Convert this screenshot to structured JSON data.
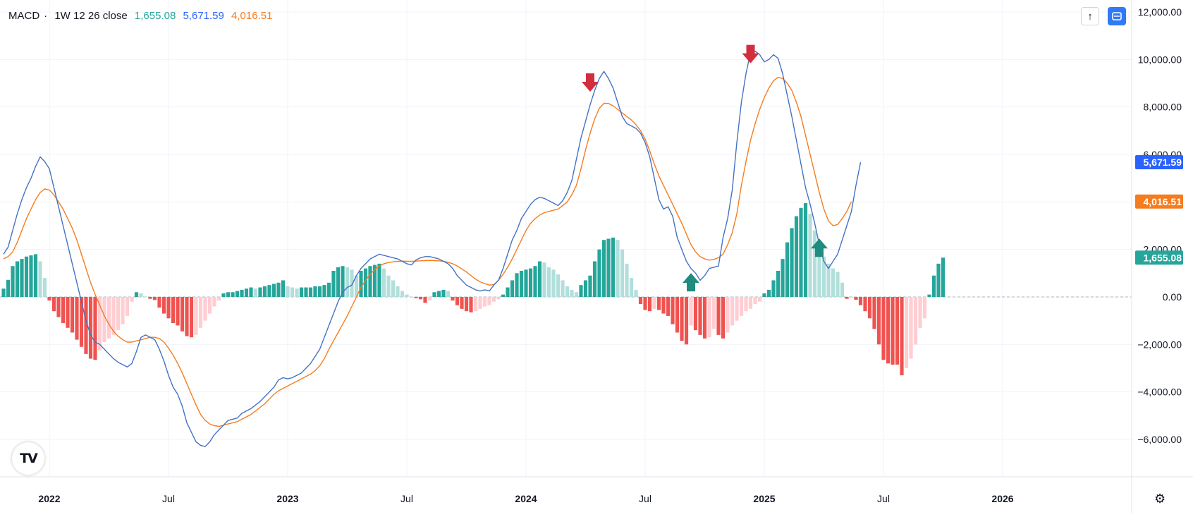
{
  "legend": {
    "name": "MACD",
    "separator": "·",
    "params": "1W 12 26 close",
    "hist_value": "1,655.08",
    "macd_value": "5,671.59",
    "signal_value": "4,016.51"
  },
  "colors": {
    "macd": "#2962ff",
    "macd_line": "#4472c4",
    "signal": "#f57c1f",
    "hist_up_strong": "#26a69a",
    "hist_up_weak": "#b2dfdb",
    "hist_down_strong": "#ef5350",
    "hist_down_weak": "#ffcdd2",
    "arrow_down": "#d22e3c",
    "arrow_up": "#1e8c7e"
  },
  "icons": {
    "up_button": "arrow-up-icon",
    "scale_button": "auto-scale-icon",
    "logo": "tradingview-logo-icon",
    "settings": "gear-icon"
  },
  "chart_data": {
    "type": "line",
    "title": "",
    "ylim": [
      -7600,
      12000
    ],
    "y_ticks": [
      12000,
      10000,
      8000,
      6000,
      4000,
      2000,
      0,
      -2000,
      -4000,
      -6000
    ],
    "y_tick_labels": [
      "12,000.00",
      "10,000.00",
      "8,000.00",
      "6,000.00",
      "4,000.00",
      "2,000.00",
      "0.00",
      "−2,000.00",
      "−4,000.00",
      "−6,000.00"
    ],
    "x_ticks": [
      {
        "label": "2022",
        "bar": 10,
        "bold": true
      },
      {
        "label": "Jul",
        "bar": 36,
        "bold": false
      },
      {
        "label": "2023",
        "bar": 62,
        "bold": true
      },
      {
        "label": "Jul",
        "bar": 88,
        "bold": false
      },
      {
        "label": "2024",
        "bar": 114,
        "bold": true
      },
      {
        "label": "Jul",
        "bar": 140,
        "bold": false
      },
      {
        "label": "2025",
        "bar": 166,
        "bold": true
      },
      {
        "label": "Jul",
        "bar": 192,
        "bold": false
      },
      {
        "label": "2026",
        "bar": 218,
        "bold": true
      }
    ],
    "bars_total_span": 250,
    "price_labels": {
      "macd": "5,671.59",
      "signal": "4,016.51",
      "histogram": "1,655.08"
    },
    "series": [
      {
        "name": "MACD",
        "values": [
          1800,
          2100,
          2800,
          3500,
          4100,
          4600,
          5000,
          5500,
          5900,
          5700,
          5400,
          4600,
          3800,
          3000,
          2200,
          1400,
          600,
          -200,
          -1000,
          -1600,
          -1900,
          -2000,
          -2200,
          -2400,
          -2600,
          -2750,
          -2850,
          -2950,
          -2800,
          -2300,
          -1700,
          -1600,
          -1700,
          -1800,
          -2200,
          -2700,
          -3300,
          -3800,
          -4100,
          -4600,
          -5300,
          -5700,
          -6100,
          -6250,
          -6300,
          -6100,
          -5800,
          -5600,
          -5400,
          -5200,
          -5150,
          -5100,
          -4900,
          -4800,
          -4700,
          -4550,
          -4400,
          -4200,
          -4000,
          -3800,
          -3500,
          -3400,
          -3450,
          -3400,
          -3300,
          -3200,
          -3000,
          -2800,
          -2500,
          -2200,
          -1700,
          -1200,
          -700,
          -200,
          200,
          400,
          500,
          900,
          1200,
          1400,
          1600,
          1700,
          1800,
          1750,
          1700,
          1650,
          1600,
          1500,
          1400,
          1350,
          1550,
          1650,
          1700,
          1700,
          1650,
          1600,
          1500,
          1400,
          1200,
          900,
          700,
          500,
          400,
          300,
          250,
          300,
          250,
          500,
          700,
          1200,
          1800,
          2400,
          2800,
          3300,
          3600,
          3900,
          4100,
          4200,
          4150,
          4050,
          3950,
          3850,
          4050,
          4400,
          4900,
          5800,
          6700,
          7400,
          8100,
          8700,
          9200,
          9500,
          9200,
          8800,
          8200,
          7600,
          7300,
          7200,
          7100,
          6900,
          6500,
          5900,
          5000,
          4100,
          3700,
          3800,
          3400,
          2500,
          2000,
          1500,
          1200,
          1000,
          700,
          900,
          1200,
          1250,
          1300,
          2500,
          3300,
          4500,
          6500,
          8200,
          9400,
          10300,
          10350,
          10200,
          9900,
          10000,
          10200,
          10050,
          9400,
          8500,
          7600,
          6600,
          5600,
          4600,
          3900,
          3100,
          2200,
          1500,
          1200,
          1500,
          1800,
          2400,
          3000,
          3600,
          4700,
          5671.59
        ]
      },
      {
        "name": "Signal",
        "values": [
          1600,
          1700,
          1900,
          2300,
          2800,
          3300,
          3700,
          4100,
          4400,
          4550,
          4500,
          4300,
          4000,
          3700,
          3300,
          2900,
          2400,
          1800,
          1200,
          600,
          100,
          -350,
          -800,
          -1150,
          -1450,
          -1650,
          -1800,
          -1900,
          -1900,
          -1850,
          -1800,
          -1750,
          -1700,
          -1700,
          -1750,
          -1900,
          -2150,
          -2450,
          -2800,
          -3200,
          -3650,
          -4100,
          -4550,
          -4950,
          -5200,
          -5350,
          -5420,
          -5450,
          -5400,
          -5350,
          -5300,
          -5250,
          -5150,
          -5050,
          -4950,
          -4800,
          -4650,
          -4500,
          -4300,
          -4100,
          -3950,
          -3850,
          -3750,
          -3650,
          -3550,
          -3450,
          -3350,
          -3250,
          -3100,
          -2900,
          -2600,
          -2200,
          -1850,
          -1500,
          -1150,
          -800,
          -400,
          0,
          400,
          700,
          950,
          1150,
          1300,
          1400,
          1450,
          1480,
          1500,
          1510,
          1500,
          1500,
          1510,
          1520,
          1530,
          1540,
          1530,
          1520,
          1500,
          1460,
          1400,
          1300,
          1180,
          1050,
          900,
          750,
          640,
          560,
          500,
          520,
          700,
          950,
          1250,
          1600,
          2000,
          2400,
          2800,
          3100,
          3300,
          3450,
          3550,
          3600,
          3650,
          3700,
          3850,
          4000,
          4300,
          4700,
          5400,
          6200,
          6900,
          7500,
          7950,
          8150,
          8150,
          8050,
          7900,
          7750,
          7600,
          7450,
          7250,
          7000,
          6650,
          6150,
          5600,
          5100,
          4700,
          4300,
          3900,
          3500,
          3100,
          2650,
          2200,
          1900,
          1700,
          1600,
          1550,
          1580,
          1650,
          1800,
          2200,
          2700,
          3500,
          4700,
          5700,
          6600,
          7300,
          7900,
          8400,
          8800,
          9100,
          9250,
          9200,
          9000,
          8700,
          8200,
          7600,
          6800,
          6000,
          5200,
          4400,
          3700,
          3200,
          3000,
          3050,
          3300,
          3600,
          4016.51
        ]
      },
      {
        "name": "Histogram",
        "values": [
          350,
          720,
          1300,
          1500,
          1600,
          1700,
          1750,
          1800,
          1500,
          800,
          -150,
          -600,
          -850,
          -1100,
          -1300,
          -1500,
          -1800,
          -2100,
          -2400,
          -2600,
          -2650,
          -2250,
          -1900,
          -1750,
          -1600,
          -1400,
          -1150,
          -800,
          -200,
          200,
          150,
          20,
          -80,
          -130,
          -450,
          -700,
          -900,
          -1100,
          -1200,
          -1450,
          -1650,
          -1700,
          -1600,
          -1300,
          -1000,
          -700,
          -400,
          -150,
          150,
          200,
          200,
          250,
          300,
          350,
          400,
          350,
          400,
          450,
          500,
          550,
          600,
          700,
          450,
          400,
          350,
          400,
          400,
          400,
          450,
          450,
          500,
          600,
          1100,
          1250,
          1300,
          1250,
          1150,
          900,
          1100,
          1200,
          1300,
          1350,
          1400,
          1200,
          900,
          700,
          450,
          250,
          100,
          0,
          -50,
          -100,
          -250,
          -150,
          200,
          250,
          300,
          250,
          -150,
          -350,
          -500,
          -600,
          -650,
          -600,
          -500,
          -400,
          -350,
          -200,
          -100,
          100,
          400,
          700,
          1000,
          1100,
          1150,
          1200,
          1300,
          1500,
          1450,
          1250,
          1150,
          950,
          700,
          450,
          300,
          200,
          500,
          700,
          900,
          1500,
          2000,
          2400,
          2450,
          2500,
          2400,
          2000,
          1400,
          800,
          300,
          -300,
          -550,
          -600,
          -500,
          -550,
          -700,
          -800,
          -1150,
          -1500,
          -1850,
          -2000,
          -1200,
          -1400,
          -1600,
          -1750,
          -1700,
          -1350,
          -1600,
          -1750,
          -1500,
          -1200,
          -1000,
          -800,
          -600,
          -500,
          -300,
          -200,
          150,
          300,
          700,
          1100,
          1600,
          2300,
          2900,
          3400,
          3750,
          3950,
          3500,
          2800,
          2000,
          1700,
          1400,
          1200,
          1050,
          600,
          -80,
          -50,
          -120,
          -350,
          -600,
          -900,
          -1350,
          -2000,
          -2650,
          -2800,
          -2850,
          -2850,
          -3300,
          -3000,
          -2600,
          -2000,
          -1300,
          -900,
          100,
          900,
          1400,
          1655.08
        ]
      }
    ],
    "annotations": [
      {
        "type": "arrow-down",
        "bar": 128,
        "value": 9000,
        "color": "#d22e3c"
      },
      {
        "type": "arrow-down",
        "bar": 163,
        "value": 10200,
        "color": "#d22e3c"
      },
      {
        "type": "arrow-up",
        "bar": 150,
        "value": 650,
        "color": "#1e8c7e"
      },
      {
        "type": "arrow-up",
        "bar": 178,
        "value": 2100,
        "color": "#1e8c7e"
      }
    ],
    "grid": true,
    "legend_position": "top-left"
  }
}
